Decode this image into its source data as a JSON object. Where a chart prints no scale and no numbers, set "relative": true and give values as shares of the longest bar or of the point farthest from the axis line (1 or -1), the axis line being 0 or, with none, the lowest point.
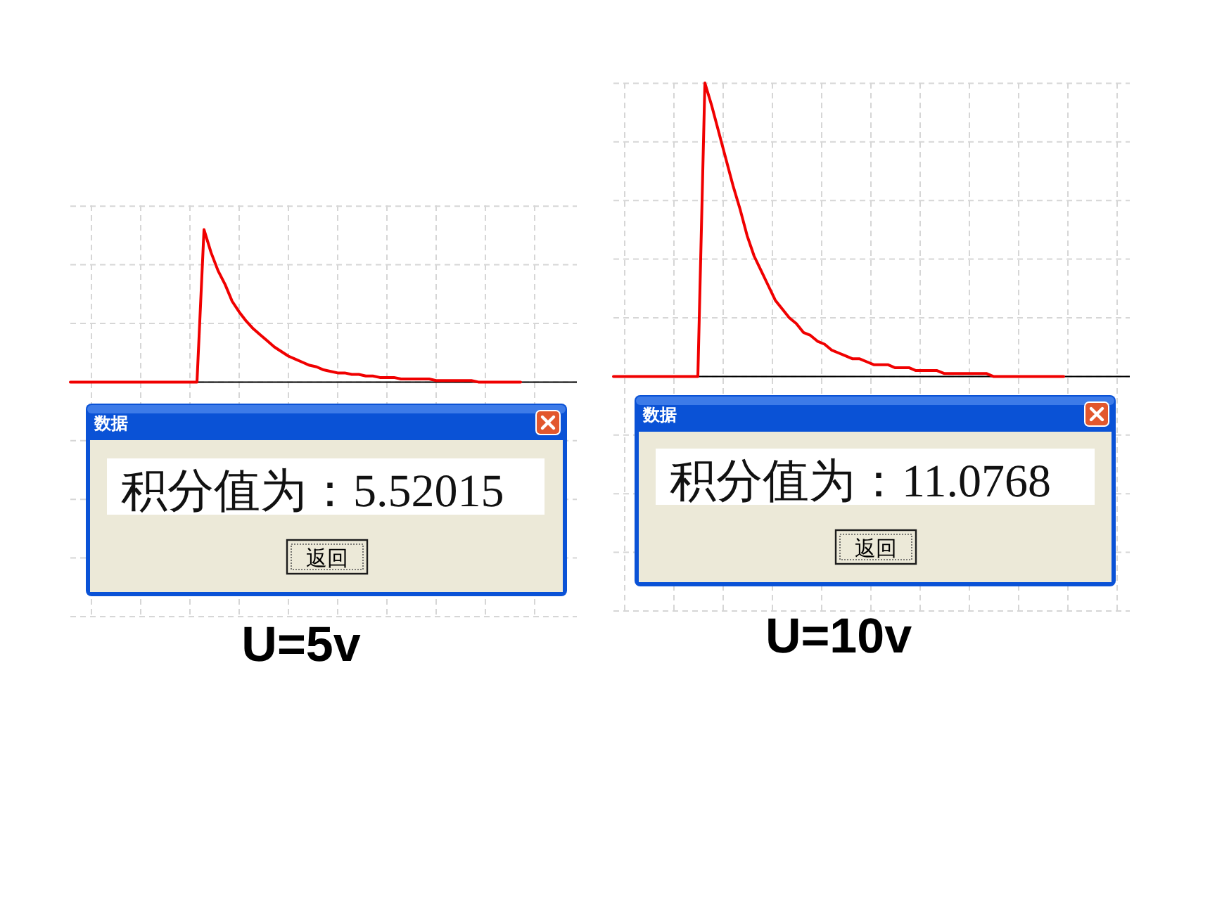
{
  "chart_data": [
    {
      "type": "line",
      "title": "U=5v",
      "relative": true,
      "grid": true,
      "color": "#f00000",
      "categories": [
        null,
        null,
        null,
        null,
        null,
        null,
        null,
        null,
        null,
        null,
        null,
        null,
        null,
        null,
        null,
        null,
        null,
        null,
        null,
        null,
        null,
        null,
        null,
        null,
        null,
        null,
        null,
        null,
        null,
        null,
        null,
        null,
        null,
        null,
        null,
        null,
        null,
        null,
        null,
        null,
        null,
        null,
        null,
        null,
        null,
        null,
        null,
        null,
        null,
        null,
        null,
        null,
        null,
        null,
        null,
        null,
        null,
        null,
        null,
        null,
        null,
        null,
        null,
        null,
        null,
        null,
        null,
        null,
        null,
        null,
        null,
        null,
        null
      ],
      "values": [
        0,
        0,
        0,
        0,
        0,
        0,
        0,
        0,
        0,
        0,
        0,
        0,
        0,
        0,
        0,
        0,
        0,
        0,
        0,
        1,
        0.85,
        0.73,
        0.64,
        0.53,
        0.46,
        0.4,
        0.35,
        0.31,
        0.27,
        0.23,
        0.2,
        0.17,
        0.15,
        0.13,
        0.11,
        0.1,
        0.08,
        0.07,
        0.06,
        0.06,
        0.05,
        0.05,
        0.04,
        0.04,
        0.03,
        0.03,
        0.03,
        0.02,
        0.02,
        0.02,
        0.02,
        0.02,
        0.01,
        0.01,
        0.01,
        0.01,
        0.01,
        0.01,
        0,
        0,
        0,
        0,
        0,
        0,
        0,
        null,
        null,
        null,
        null,
        null,
        null,
        null,
        null
      ],
      "annotations": [
        "数据",
        "积分值为：5.52015",
        "返回"
      ]
    },
    {
      "type": "line",
      "title": "U=10v",
      "relative": true,
      "grid": true,
      "color": "#f00000",
      "categories": [
        null,
        null,
        null,
        null,
        null,
        null,
        null,
        null,
        null,
        null,
        null,
        null,
        null,
        null,
        null,
        null,
        null,
        null,
        null,
        null,
        null,
        null,
        null,
        null,
        null,
        null,
        null,
        null,
        null,
        null,
        null,
        null,
        null,
        null,
        null,
        null,
        null,
        null,
        null,
        null,
        null,
        null,
        null,
        null,
        null,
        null,
        null,
        null,
        null,
        null,
        null,
        null,
        null,
        null,
        null,
        null,
        null,
        null,
        null,
        null,
        null,
        null,
        null,
        null,
        null,
        null,
        null,
        null,
        null,
        null,
        null,
        null,
        null,
        null
      ],
      "values": [
        0,
        0,
        0,
        0,
        0,
        0,
        0,
        0,
        0,
        0,
        0,
        0,
        0,
        1,
        0.92,
        0.83,
        0.74,
        0.65,
        0.57,
        0.48,
        0.41,
        0.36,
        0.31,
        0.26,
        0.23,
        0.2,
        0.18,
        0.15,
        0.14,
        0.12,
        0.11,
        0.09,
        0.08,
        0.07,
        0.06,
        0.06,
        0.05,
        0.04,
        0.04,
        0.04,
        0.03,
        0.03,
        0.03,
        0.02,
        0.02,
        0.02,
        0.02,
        0.01,
        0.01,
        0.01,
        0.01,
        0.01,
        0.01,
        0.01,
        0,
        0,
        0,
        0,
        0,
        0,
        0,
        0,
        0,
        0,
        0,
        null,
        null,
        null,
        null,
        null,
        null,
        null,
        null,
        null
      ],
      "annotations": [
        "数据",
        "积分值为：11.0768",
        "返回"
      ]
    }
  ]
}
